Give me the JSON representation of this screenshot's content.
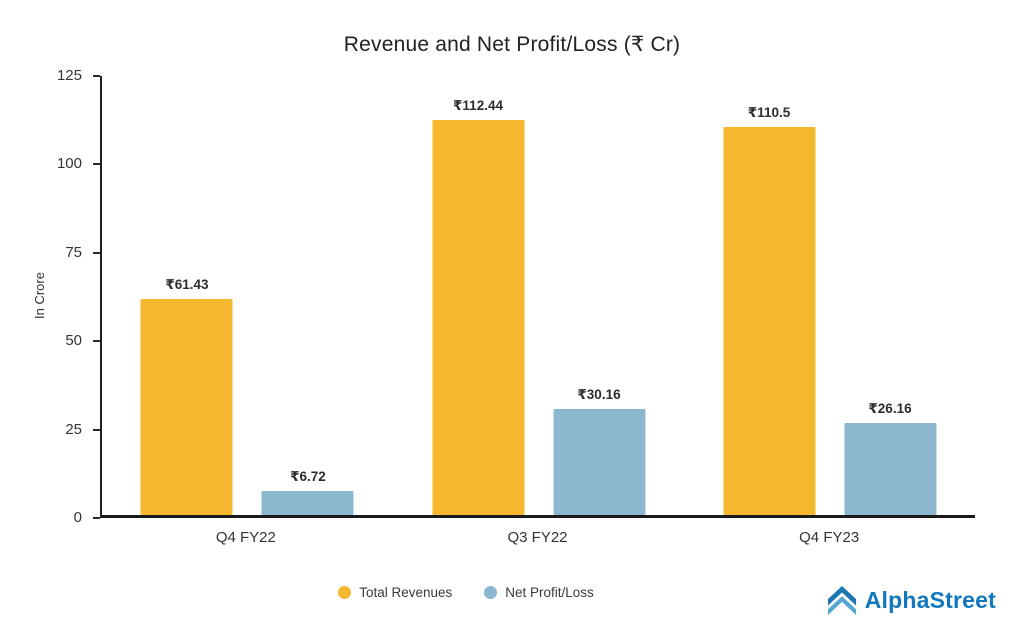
{
  "chart_data": {
    "type": "bar",
    "title": "Revenue and Net Profit/Loss (₹ Cr)",
    "xlabel": "",
    "ylabel": "In Crore",
    "ylim": [
      0,
      125
    ],
    "yticks": [
      0,
      25,
      50,
      75,
      100,
      125
    ],
    "grid": false,
    "legend_position": "bottom",
    "categories": [
      "Q4 FY22",
      "Q3 FY22",
      "Q4 FY23"
    ],
    "series": [
      {
        "name": "Total Revenues",
        "color": "#F5B82E",
        "values": [
          61.43,
          112.44,
          110.5
        ],
        "labels": [
          "₹61.43",
          "₹112.44",
          "₹110.5"
        ]
      },
      {
        "name": "Net Profit/Loss",
        "color": "#8CB8CF",
        "values": [
          6.72,
          30.16,
          26.16
        ],
        "labels": [
          "₹6.72",
          "₹30.16",
          "₹26.16"
        ]
      }
    ]
  },
  "branding": {
    "logo_text": "AlphaStreet",
    "logo_color": "#1278BE"
  }
}
